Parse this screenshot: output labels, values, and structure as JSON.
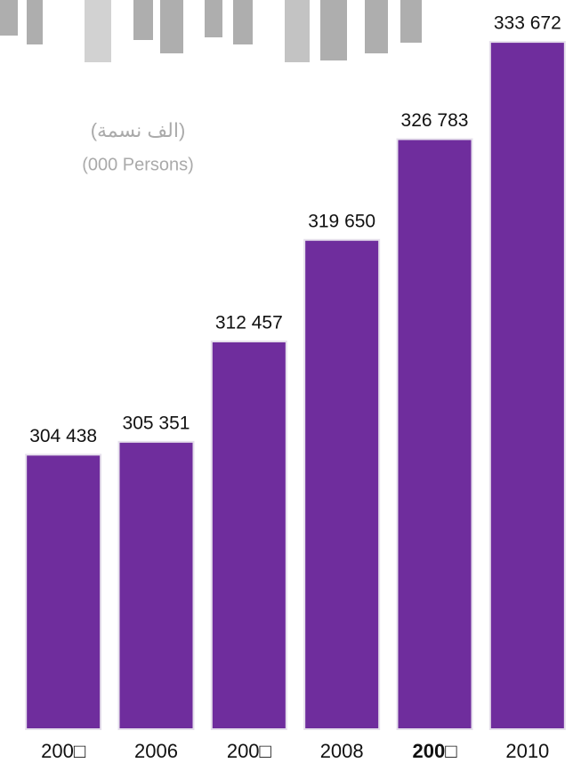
{
  "chart_data": {
    "type": "bar",
    "title": "(الف نسمة)",
    "subtitle": "(000 Persons)",
    "categories": [
      "200□",
      "2006",
      "200□",
      "2008",
      "200□",
      "2010"
    ],
    "values": [
      304438,
      305351,
      312457,
      319650,
      326783,
      333672
    ],
    "value_labels": [
      "304 438",
      "305 351",
      "312 457",
      "319 650",
      "326 783",
      "333 672"
    ],
    "color": "#6f2d9d",
    "ylim": [
      285000,
      335000
    ]
  }
}
